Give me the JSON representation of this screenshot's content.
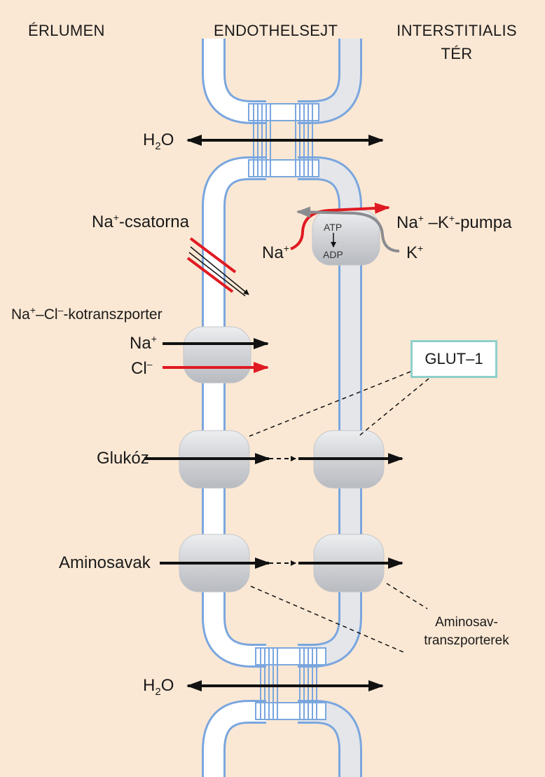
{
  "headers": {
    "left": "ÉRLUMEN",
    "middle": "ENDOTHELSEJT",
    "right_line1": "INTERSTITIALIS",
    "right_line2": "TÉR"
  },
  "water": {
    "main": "H",
    "sub": "2",
    "tail": "O"
  },
  "na_channel": {
    "main": "Na",
    "sup": "+",
    "tail": "-csatorna"
  },
  "pump": {
    "label_na": "Na",
    "label_sup1": "+",
    "label_dash": " –K",
    "label_sup2": "+",
    "label_tail": "-pumpa",
    "in_na": "Na",
    "in_na_sup": "+",
    "out_k": "K",
    "out_k_sup": "+",
    "atp": "ATP",
    "adp": "ADP"
  },
  "cotransporter": {
    "title_na": "Na",
    "title_sup1": "+",
    "title_mid": "–Cl",
    "title_sup2": "–",
    "title_tail": "-kotranszporter",
    "na": "Na",
    "na_sup": "+",
    "cl": "Cl",
    "cl_sup": "–"
  },
  "glut": {
    "label": "GLUT–1"
  },
  "glucose": {
    "label": "Glukóz"
  },
  "amino": {
    "label": "Aminosavak",
    "transporter_line1": "Aminosav-",
    "transporter_line2": "transzporterek"
  },
  "colors": {
    "background": "#fbe8d4",
    "membrane_blue": "#7aa6de",
    "cytoplasm": "#ffffff",
    "protein_gray": "#d4d6da",
    "arrow_black": "#111111",
    "arrow_red": "#e01a22",
    "arrow_gray": "#8a8c90",
    "glut_border": "#8fd0cc"
  }
}
